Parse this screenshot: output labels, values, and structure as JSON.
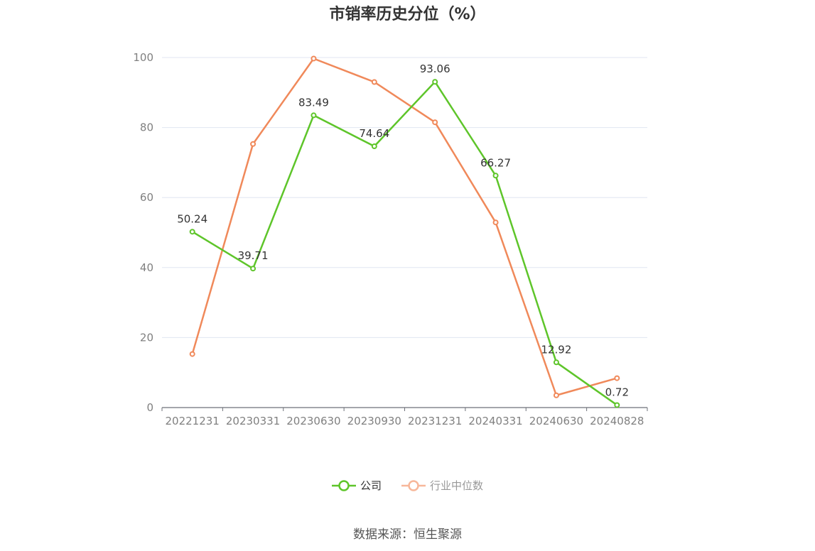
{
  "chart_data": {
    "type": "line",
    "title": "市销率历史分位（%）",
    "categories": [
      "20221231",
      "20230331",
      "20230630",
      "20230930",
      "20231231",
      "20240331",
      "20240630",
      "20240828"
    ],
    "series": [
      {
        "name": "公司",
        "values": [
          50.24,
          39.71,
          83.49,
          74.64,
          93.06,
          66.27,
          12.92,
          0.72
        ],
        "color": "#5ec52a",
        "show_labels": true
      },
      {
        "name": "行业中位数",
        "values": [
          15.3,
          75.3,
          99.7,
          93.0,
          81.5,
          52.9,
          3.5,
          8.4
        ],
        "color": "#f0895a",
        "show_labels": false
      }
    ],
    "yticks": [
      0,
      20,
      40,
      60,
      80,
      100
    ],
    "ylim": [
      0,
      100
    ],
    "grid": true,
    "legend_position": "bottom-center"
  },
  "source": "数据来源：恒生聚源",
  "colors": {
    "axis": "#6e7079",
    "grid": "#e0e6f1",
    "tick_text": "#808080",
    "label_text": "#333333",
    "legend_faded": "#f7b79a"
  }
}
